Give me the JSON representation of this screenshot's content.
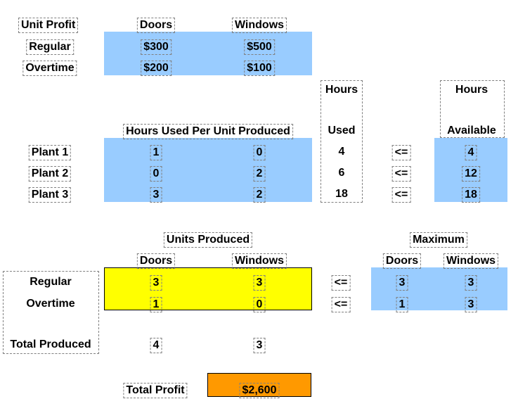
{
  "profit": {
    "header": "Unit Profit",
    "col_doors": "Doors",
    "col_windows": "Windows",
    "row_regular": "Regular",
    "row_overtime": "Overtime",
    "regular_doors": "$300",
    "regular_windows": "$500",
    "overtime_doors": "$200",
    "overtime_windows": "$100"
  },
  "hours": {
    "used_header_top": "Hours",
    "used_header_bottom": "Used",
    "avail_header_top": "Hours",
    "avail_header_bottom": "Available",
    "table_header": "Hours Used Per Unit Produced",
    "rows": [
      {
        "plant": "Plant 1",
        "doors": "1",
        "windows": "0",
        "used": "4",
        "op": "<=",
        "available": "4"
      },
      {
        "plant": "Plant 2",
        "doors": "0",
        "windows": "2",
        "used": "6",
        "op": "<=",
        "available": "12"
      },
      {
        "plant": "Plant 3",
        "doors": "3",
        "windows": "2",
        "used": "18",
        "op": "<=",
        "available": "18"
      }
    ]
  },
  "production": {
    "header": "Units Produced",
    "col_doors": "Doors",
    "col_windows": "Windows",
    "max_header": "Maximum",
    "max_col_doors": "Doors",
    "max_col_windows": "Windows",
    "row_regular": "Regular",
    "row_overtime": "Overtime",
    "row_total": "Total Produced",
    "regular_doors": "3",
    "regular_windows": "3",
    "overtime_doors": "1",
    "overtime_windows": "0",
    "regular_op": "<=",
    "overtime_op": "<=",
    "max_regular_doors": "3",
    "max_regular_windows": "3",
    "max_overtime_doors": "1",
    "max_overtime_windows": "3",
    "total_doors": "4",
    "total_windows": "3"
  },
  "total_profit": {
    "label": "Total Profit",
    "value": "$2,600"
  },
  "colors": {
    "data_fill": "#99ccff",
    "changing_cells": "#ffff00",
    "objective_cell": "#ff9900"
  }
}
